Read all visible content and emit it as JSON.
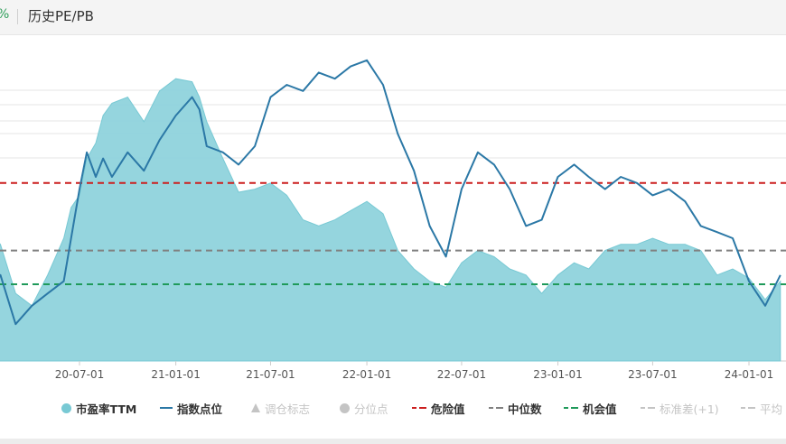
{
  "header": {
    "percent_fragment": "%",
    "title": "历史PE/PB"
  },
  "colors": {
    "pe_fill": "#8fd3dc",
    "pe_line": "#78c9d4",
    "index_line": "#2b78a6",
    "danger": "#cc1f1f",
    "median": "#808080",
    "opportunity": "#1f9a5a",
    "disabled": "#c4c4c4",
    "grid": "#e5e5e5"
  },
  "legend": [
    {
      "key": "pe",
      "label": "市盈率TTM",
      "icon": "circle",
      "color": "#78c9d4",
      "enabled": true
    },
    {
      "key": "index",
      "label": "指数点位",
      "icon": "line",
      "color": "#2b78a6",
      "enabled": true
    },
    {
      "key": "rebalance",
      "label": "调仓标志",
      "icon": "triangle",
      "color": "#c4c4c4",
      "enabled": false
    },
    {
      "key": "quantile",
      "label": "分位点",
      "icon": "circle",
      "color": "#c4c4c4",
      "enabled": false
    },
    {
      "key": "danger",
      "label": "危险值",
      "icon": "dash",
      "color": "#cc1f1f",
      "enabled": true
    },
    {
      "key": "median",
      "label": "中位数",
      "icon": "dash",
      "color": "#808080",
      "enabled": true
    },
    {
      "key": "opportunity",
      "label": "机会值",
      "icon": "dash",
      "color": "#1f9a5a",
      "enabled": true
    },
    {
      "key": "std_plus",
      "label": "标准差(+1)",
      "icon": "dash",
      "color": "#c4c4c4",
      "enabled": false
    },
    {
      "key": "avg",
      "label": "平均",
      "icon": "dash",
      "color": "#c4c4c4",
      "enabled": false
    }
  ],
  "chart_data": {
    "type": "area",
    "x_tick_labels": [
      "20-07-01",
      "21-01-01",
      "21-07-01",
      "22-01-01",
      "22-07-01",
      "23-01-01",
      "23-07-01",
      "24-01-01"
    ],
    "x_range": [
      "2020-01",
      "2024-03"
    ],
    "y_range_relative": [
      0,
      100
    ],
    "reference_lines": {
      "danger": 58,
      "median": 36,
      "opportunity": 25
    },
    "series": [
      {
        "name": "市盈率TTM",
        "type": "area",
        "x": [
          "2020-01",
          "2020-02",
          "2020-03",
          "2020-04",
          "2020-05",
          "2020-06",
          "2020-06-15",
          "2020-07",
          "2020-07-15",
          "2020-08",
          "2020-08-15",
          "2020-09",
          "2020-10",
          "2020-11",
          "2020-12",
          "2021-01",
          "2021-02",
          "2021-02-15",
          "2021-03",
          "2021-04",
          "2021-05",
          "2021-06",
          "2021-07",
          "2021-08",
          "2021-09",
          "2021-10",
          "2021-11",
          "2021-12",
          "2022-01",
          "2022-02",
          "2022-03",
          "2022-04",
          "2022-05",
          "2022-06",
          "2022-07",
          "2022-08",
          "2022-09",
          "2022-10",
          "2022-11",
          "2022-12",
          "2023-01",
          "2023-02",
          "2023-03",
          "2023-04",
          "2023-05",
          "2023-06",
          "2023-07",
          "2023-08",
          "2023-09",
          "2023-10",
          "2023-11",
          "2023-12",
          "2024-01",
          "2024-02",
          "2024-03"
        ],
        "values": [
          28,
          38,
          22,
          18,
          28,
          40,
          50,
          54,
          66,
          71,
          80,
          84,
          86,
          78,
          88,
          92,
          91,
          86,
          78,
          66,
          55,
          56,
          58,
          54,
          46,
          44,
          46,
          49,
          52,
          48,
          36,
          30,
          26,
          24,
          32,
          36,
          34,
          30,
          28,
          22,
          28,
          32,
          30,
          36,
          38,
          38,
          40,
          38,
          38,
          36,
          28,
          30,
          27,
          20,
          26
        ]
      },
      {
        "name": "指数点位",
        "type": "line",
        "x": [
          "2020-01",
          "2020-02",
          "2020-03",
          "2020-04",
          "2020-05",
          "2020-06",
          "2020-06-15",
          "2020-07",
          "2020-07-15",
          "2020-08",
          "2020-08-15",
          "2020-09",
          "2020-10",
          "2020-11",
          "2020-12",
          "2021-01",
          "2021-02",
          "2021-02-15",
          "2021-03",
          "2021-04",
          "2021-05",
          "2021-06",
          "2021-07",
          "2021-08",
          "2021-09",
          "2021-10",
          "2021-11",
          "2021-12",
          "2022-01",
          "2022-02",
          "2022-03",
          "2022-04",
          "2022-05",
          "2022-06",
          "2022-07",
          "2022-08",
          "2022-09",
          "2022-10",
          "2022-11",
          "2022-12",
          "2023-01",
          "2023-02",
          "2023-03",
          "2023-04",
          "2023-05",
          "2023-06",
          "2023-07",
          "2023-08",
          "2023-09",
          "2023-10",
          "2023-11",
          "2023-12",
          "2024-01",
          "2024-02",
          "2024-03"
        ],
        "values": [
          20,
          28,
          12,
          18,
          22,
          26,
          40,
          56,
          68,
          60,
          66,
          60,
          68,
          62,
          72,
          80,
          86,
          82,
          70,
          68,
          64,
          70,
          86,
          90,
          88,
          94,
          92,
          96,
          98,
          90,
          74,
          62,
          44,
          34,
          56,
          68,
          64,
          56,
          44,
          46,
          60,
          64,
          60,
          56,
          60,
          58,
          54,
          56,
          52,
          44,
          42,
          40,
          26,
          18,
          28
        ]
      }
    ]
  }
}
